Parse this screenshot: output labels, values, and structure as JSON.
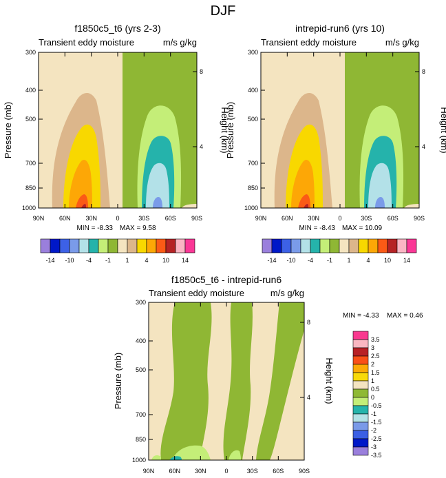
{
  "page": {
    "title": "DJF"
  },
  "panels": [
    {
      "id": "p1",
      "title": "f1850c5_t6 (yrs 2-3)",
      "left_label": "Transient eddy moisture",
      "right_label": "m/s g/kg",
      "min_text": "MIN = -8.33",
      "max_text": "MAX =  9.58"
    },
    {
      "id": "p2",
      "title": "intrepid-run6 (yrs 10)",
      "left_label": "Transient eddy moisture",
      "right_label": "m/s g/kg",
      "min_text": "MIN = -8.43",
      "max_text": "MAX = 10.09"
    },
    {
      "id": "p3",
      "title": "f1850c5_t6 - intrepid-run6",
      "left_label": "Transient eddy moisture",
      "right_label": "m/s g/kg",
      "min_text": "MIN = -4.33",
      "max_text": "MAX =  0.46"
    }
  ],
  "axes": {
    "ylabel": "Pressure (mb)",
    "y2label": "Height (km)",
    "x_ticks": [
      "90N",
      "60N",
      "30N",
      "0",
      "30S",
      "60S",
      "90S"
    ],
    "y_ticks": [
      "300",
      "400",
      "500",
      "700",
      "850",
      "1000"
    ],
    "y2_ticks": [
      "8",
      "4"
    ]
  },
  "colorbar_top": {
    "colors": [
      "#9a7fdc",
      "#0018c8",
      "#3d61e6",
      "#7a9be9",
      "#b3e1e8",
      "#25b3ab",
      "#c4ee78",
      "#8fb734",
      "#f4e4c0",
      "#dcb68b",
      "#f8d800",
      "#fda706",
      "#fb5a16",
      "#b52325",
      "#fbb5c4",
      "#fa3796"
    ],
    "labels": [
      "-14",
      "-10",
      "-4",
      "-1",
      "1",
      "4",
      "10",
      "14"
    ]
  },
  "colorbar_side": {
    "colors": [
      "#f9398f",
      "#fab7c2",
      "#b82126",
      "#f95018",
      "#fcaa06",
      "#f8da0b",
      "#f4e4c1",
      "#8fb935",
      "#c4ee78",
      "#25b4ab",
      "#b3e2e6",
      "#7a9ae8",
      "#3b5fe4",
      "#0018c8",
      "#9a7fdc"
    ],
    "labels": [
      "3.5",
      "3",
      "2.5",
      "2",
      "1.5",
      "1",
      "0.5",
      "0",
      "-0.5",
      "-1",
      "-1.5",
      "-2",
      "-2.5",
      "-3",
      "-3.5"
    ]
  },
  "chart_data": [
    {
      "type": "heatmap",
      "title": "f1850c5_t6 (yrs 2-3)",
      "variable": "Transient eddy moisture",
      "units": "m/s g/kg",
      "x": [
        "90N",
        "60N",
        "30N",
        "0",
        "30S",
        "60S",
        "90S"
      ],
      "y": [
        300,
        400,
        500,
        700,
        850,
        1000
      ],
      "min": -8.33,
      "max": 9.58
    },
    {
      "type": "heatmap",
      "title": "intrepid-run6 (yrs 10)",
      "variable": "Transient eddy moisture",
      "units": "m/s g/kg",
      "x": [
        "90N",
        "60N",
        "30N",
        "0",
        "30S",
        "60S",
        "90S"
      ],
      "y": [
        300,
        400,
        500,
        700,
        850,
        1000
      ],
      "min": -8.43,
      "max": 10.09
    },
    {
      "type": "heatmap",
      "title": "f1850c5_t6 - intrepid-run6",
      "variable": "Transient eddy moisture",
      "units": "m/s g/kg",
      "x": [
        "90N",
        "60N",
        "30N",
        "0",
        "30S",
        "60S",
        "90S"
      ],
      "y": [
        300,
        400,
        500,
        700,
        850,
        1000
      ],
      "min": -4.33,
      "max": 0.46
    }
  ]
}
